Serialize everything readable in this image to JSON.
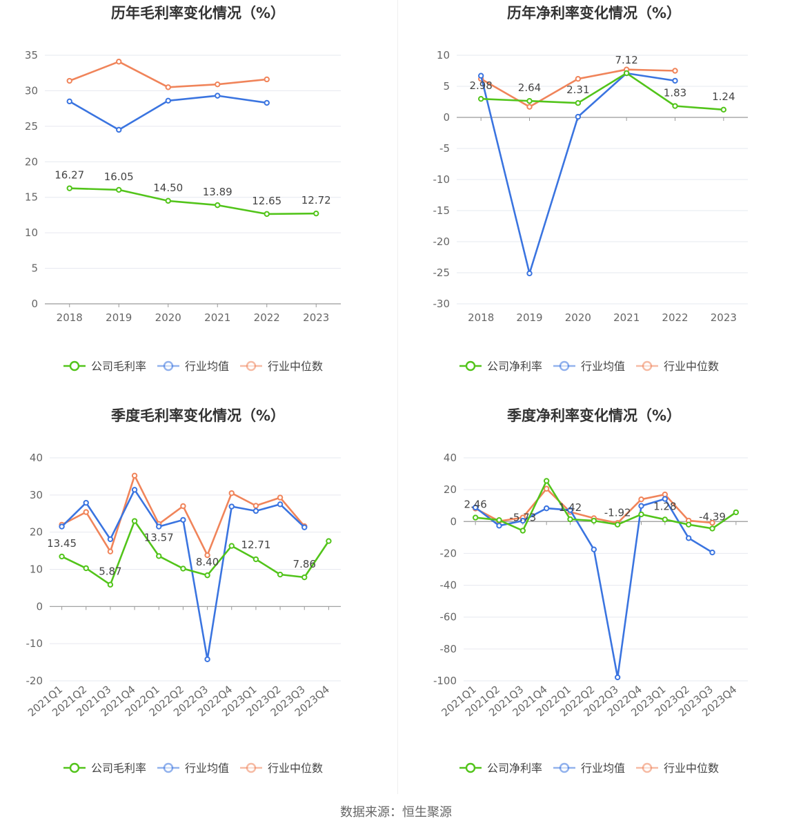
{
  "colors": {
    "company": "#52c41a",
    "avg": "#3a74e0",
    "median": "#f0845a",
    "grid": "#e6e8ef",
    "axis": "#999999",
    "text": "#666666",
    "label": "#444444",
    "title": "#333333"
  },
  "source_text": "数据来源：恒生聚源",
  "charts": [
    {
      "title": "历年毛利率变化情况（%）",
      "chart_data": {
        "type": "line",
        "categories": [
          "2018",
          "2019",
          "2020",
          "2021",
          "2022",
          "2023"
        ],
        "ylim": [
          0,
          35
        ],
        "yticks": [
          0,
          5,
          10,
          15,
          20,
          25,
          30,
          35
        ],
        "series": [
          {
            "name": "公司毛利率",
            "key": "company",
            "values": [
              16.27,
              16.05,
              14.5,
              13.89,
              12.65,
              12.72
            ]
          },
          {
            "name": "行业均值",
            "key": "avg",
            "values": [
              28.5,
              24.5,
              28.6,
              29.3,
              28.3,
              null
            ]
          },
          {
            "name": "行业中位数",
            "key": "median",
            "values": [
              31.4,
              34.1,
              30.5,
              30.9,
              31.6,
              null
            ]
          }
        ],
        "data_labels": [
          "16.27",
          "16.05",
          "14.50",
          "13.89",
          "12.65",
          "12.72"
        ],
        "legend_position": "bottom"
      }
    },
    {
      "title": "历年净利率变化情况（%）",
      "chart_data": {
        "type": "line",
        "categories": [
          "2018",
          "2019",
          "2020",
          "2021",
          "2022",
          "2023"
        ],
        "ylim": [
          -30,
          10
        ],
        "yticks": [
          -30,
          -25,
          -20,
          -15,
          -10,
          -5,
          0,
          5,
          10
        ],
        "series": [
          {
            "name": "公司净利率",
            "key": "company",
            "values": [
              2.98,
              2.64,
              2.31,
              7.12,
              1.83,
              1.24
            ]
          },
          {
            "name": "行业均值",
            "key": "avg",
            "values": [
              6.7,
              -25.1,
              0.1,
              7.1,
              5.9,
              null
            ]
          },
          {
            "name": "行业中位数",
            "key": "median",
            "values": [
              6.2,
              1.7,
              6.2,
              7.7,
              7.5,
              null
            ]
          }
        ],
        "data_labels": [
          "2.98",
          "2.64",
          "2.31",
          "7.12",
          "1.83",
          "1.24"
        ],
        "legend_position": "bottom"
      }
    },
    {
      "title": "季度毛利率变化情况（%）",
      "chart_data": {
        "type": "line",
        "categories": [
          "2021Q1",
          "2021Q2",
          "2021Q3",
          "2021Q4",
          "2022Q1",
          "2022Q2",
          "2022Q3",
          "2022Q4",
          "2023Q1",
          "2023Q2",
          "2023Q3",
          "2023Q4"
        ],
        "ylim": [
          -20,
          40
        ],
        "yticks": [
          -20,
          -10,
          0,
          10,
          20,
          30,
          40
        ],
        "series": [
          {
            "name": "公司毛利率",
            "key": "company",
            "values": [
              13.45,
              10.3,
              5.87,
              23.0,
              13.57,
              10.2,
              8.4,
              16.3,
              12.71,
              8.6,
              7.86,
              17.6
            ]
          },
          {
            "name": "行业均值",
            "key": "avg",
            "values": [
              21.5,
              27.9,
              18.1,
              31.4,
              21.5,
              23.3,
              -14.2,
              26.9,
              25.7,
              27.5,
              21.3,
              null
            ]
          },
          {
            "name": "行业中位数",
            "key": "median",
            "values": [
              22.0,
              25.4,
              14.8,
              35.2,
              22.2,
              27.0,
              13.8,
              30.5,
              27.1,
              29.3,
              21.6,
              null
            ]
          }
        ],
        "data_labels": [
          "13.45",
          "",
          "5.87",
          "",
          "13.57",
          "",
          "8.40",
          "",
          "12.71",
          "",
          "7.86",
          ""
        ],
        "legend_position": "bottom"
      }
    },
    {
      "title": "季度净利率变化情况（%）",
      "chart_data": {
        "type": "line",
        "categories": [
          "2021Q1",
          "2021Q2",
          "2021Q3",
          "2021Q4",
          "2022Q1",
          "2022Q2",
          "2022Q3",
          "2022Q4",
          "2023Q1",
          "2023Q2",
          "2023Q3",
          "2023Q4"
        ],
        "ylim": [
          -100,
          40
        ],
        "yticks": [
          -100,
          -80,
          -60,
          -40,
          -20,
          0,
          20,
          40
        ],
        "series": [
          {
            "name": "公司净利率",
            "key": "company",
            "values": [
              2.46,
              0.9,
              -5.73,
              25.5,
              1.42,
              0.5,
              -1.92,
              4.5,
              1.28,
              -1.9,
              -4.39,
              5.8
            ]
          },
          {
            "name": "行业均值",
            "key": "avg",
            "values": [
              8.8,
              -2.6,
              0.5,
              8.3,
              7.2,
              -17.5,
              -97.8,
              9.8,
              14.2,
              -10.4,
              -19.4,
              null
            ]
          },
          {
            "name": "行业中位数",
            "key": "median",
            "values": [
              8.2,
              0.2,
              2.5,
              20.6,
              6.0,
              2.1,
              -0.9,
              13.9,
              17.0,
              0.6,
              -0.8,
              null
            ]
          }
        ],
        "data_labels": [
          "2.46",
          "",
          "-5.73",
          "",
          "1.42",
          "",
          "-1.92",
          "",
          "1.28",
          "",
          "-4.39",
          ""
        ],
        "legend_position": "bottom"
      }
    }
  ]
}
